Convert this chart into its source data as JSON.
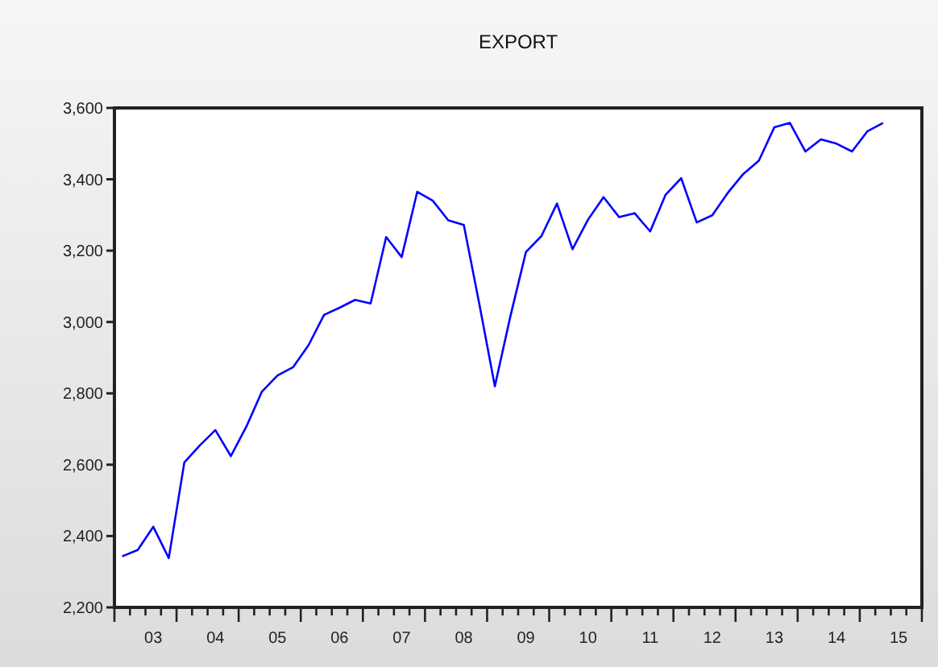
{
  "chart_data": {
    "type": "line",
    "title": "EXPORT",
    "categories": [
      null,
      null,
      "03",
      null,
      null,
      null,
      "04",
      null,
      null,
      null,
      "05",
      null,
      null,
      null,
      "06",
      null,
      null,
      null,
      "07",
      null,
      null,
      null,
      "08",
      null,
      null,
      null,
      "09",
      null,
      null,
      null,
      "10",
      null,
      null,
      null,
      "11",
      null,
      null,
      null,
      "12",
      null,
      null,
      null,
      "13",
      null,
      null,
      null,
      "14",
      null,
      null,
      null,
      "15",
      null
    ],
    "series": [
      {
        "color": "#0000ff",
        "values": [
          2343,
          2361,
          2426,
          2338,
          2606,
          2654,
          2697,
          2624,
          2707,
          2805,
          2850,
          2873,
          2935,
          3020,
          3040,
          3062,
          3052,
          3238,
          3182,
          3365,
          3340,
          3285,
          3272,
          3050,
          2820,
          3016,
          3196,
          3241,
          3332,
          3204,
          3287,
          3350,
          3294,
          3305,
          3254,
          3357,
          3403,
          3279,
          3299,
          3362,
          3415,
          3452,
          3546,
          3558,
          3478,
          3512,
          3500,
          3478,
          3535,
          3558,
          null,
          null
        ]
      }
    ],
    "ylim": [
      2200,
      3600
    ],
    "yticks": [
      {
        "value": 2200,
        "label": "2,200"
      },
      {
        "value": 2400,
        "label": "2,400"
      },
      {
        "value": 2600,
        "label": "2,600"
      },
      {
        "value": 2800,
        "label": "2,800"
      },
      {
        "value": 3000,
        "label": "3,000"
      },
      {
        "value": 3200,
        "label": "3,200"
      },
      {
        "value": 3400,
        "label": "3,400"
      },
      {
        "value": 3600,
        "label": "3,600"
      }
    ],
    "grid": false,
    "marker": "none",
    "line_style": "solid"
  }
}
